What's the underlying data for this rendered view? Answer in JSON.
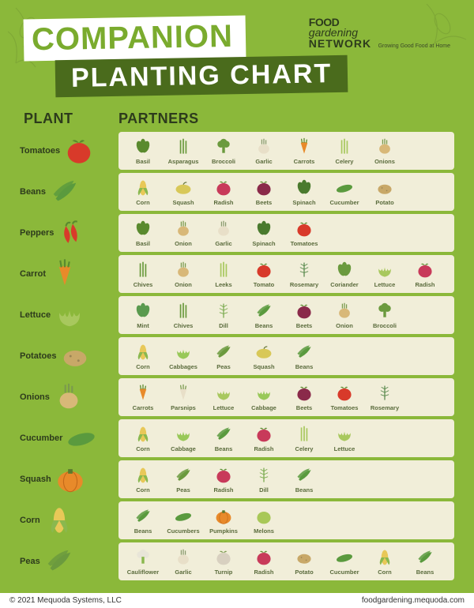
{
  "colors": {
    "background": "#8bb83a",
    "row_bg": "#f1eed9",
    "title1_bg": "#ffffff",
    "title1_fg": "#7aab2e",
    "title2_bg": "#4a6b1c",
    "title2_fg": "#ffffff",
    "header_text": "#2d3b1c",
    "partner_label": "#5a6b3c",
    "footer_bg": "#ffffff"
  },
  "header": {
    "title1": "COMPANION",
    "title2": "PLANTING CHART",
    "logo": {
      "line1": "FOOD",
      "line2": "gardening",
      "line3": "NETWORK",
      "tagline": "Growing Good Food at Home"
    }
  },
  "columns": {
    "plant": "PLANT",
    "partners": "PARTNERS"
  },
  "icons": {
    "tomato": {
      "shape": "circle",
      "fill": "#d83a2a",
      "leaf": "#5a8a2e"
    },
    "basil": {
      "shape": "leaves",
      "fill": "#5a8a2e"
    },
    "asparagus": {
      "shape": "stalks",
      "fill": "#6b9a3e"
    },
    "broccoli": {
      "shape": "broccoli",
      "fill": "#6b9a3e"
    },
    "garlic": {
      "shape": "bulb",
      "fill": "#e8dfc8",
      "top": "#8a9a6e"
    },
    "carrot": {
      "shape": "carrot",
      "fill": "#e88a2a",
      "leaf": "#5a8a2e"
    },
    "celery": {
      "shape": "stalks",
      "fill": "#a8c85e"
    },
    "onion": {
      "shape": "bulb",
      "fill": "#d8b878",
      "top": "#7a9a4e"
    },
    "beans": {
      "shape": "pods",
      "fill": "#5a9a3e"
    },
    "corn": {
      "shape": "corn",
      "fill": "#e8c858",
      "husk": "#8ab84e"
    },
    "squash": {
      "shape": "squash",
      "fill": "#d8c858"
    },
    "radish": {
      "shape": "circle",
      "fill": "#c83a5a",
      "leaf": "#5a8a2e"
    },
    "beets": {
      "shape": "circle",
      "fill": "#8a2a4a",
      "leaf": "#5a8a2e"
    },
    "spinach": {
      "shape": "leaves",
      "fill": "#4a7a2e"
    },
    "cucumber": {
      "shape": "cuke",
      "fill": "#5a9a3e"
    },
    "potato": {
      "shape": "lump",
      "fill": "#c8a868"
    },
    "pepper": {
      "shape": "pepper",
      "fill": "#d83a2a",
      "stem": "#5a8a2e"
    },
    "chives": {
      "shape": "stalks",
      "fill": "#6b9a3e"
    },
    "leeks": {
      "shape": "stalks",
      "fill": "#a8c85e"
    },
    "rosemary": {
      "shape": "sprig",
      "fill": "#5a8a4e"
    },
    "coriander": {
      "shape": "leaves",
      "fill": "#6b9a3e"
    },
    "lettuce": {
      "shape": "lettuce",
      "fill": "#a8c85e"
    },
    "mint": {
      "shape": "leaves",
      "fill": "#5a9a4e"
    },
    "dill": {
      "shape": "sprig",
      "fill": "#7aaa4e"
    },
    "cabbage": {
      "shape": "lettuce",
      "fill": "#98c858"
    },
    "peas": {
      "shape": "pods",
      "fill": "#6b9a3e"
    },
    "parsnip": {
      "shape": "carrot",
      "fill": "#e8dfc8",
      "leaf": "#7a9a4e"
    },
    "pumpkin": {
      "shape": "pumpkin",
      "fill": "#e88a2a",
      "stem": "#5a7a2e"
    },
    "melon": {
      "shape": "circle",
      "fill": "#a8c858"
    },
    "cauliflower": {
      "shape": "broccoli",
      "fill": "#e8e5d8",
      "leaf": "#8ab84e"
    },
    "turnip": {
      "shape": "circle",
      "fill": "#d8d0c0",
      "leaf": "#7a9a4e"
    }
  },
  "rows": [
    {
      "plant": "Tomatoes",
      "icon": "tomato",
      "partners": [
        {
          "label": "Basil",
          "icon": "basil"
        },
        {
          "label": "Asparagus",
          "icon": "asparagus"
        },
        {
          "label": "Broccoli",
          "icon": "broccoli"
        },
        {
          "label": "Garlic",
          "icon": "garlic"
        },
        {
          "label": "Carrots",
          "icon": "carrot"
        },
        {
          "label": "Celery",
          "icon": "celery"
        },
        {
          "label": "Onions",
          "icon": "onion"
        }
      ]
    },
    {
      "plant": "Beans",
      "icon": "beans",
      "partners": [
        {
          "label": "Corn",
          "icon": "corn"
        },
        {
          "label": "Squash",
          "icon": "squash"
        },
        {
          "label": "Radish",
          "icon": "radish"
        },
        {
          "label": "Beets",
          "icon": "beets"
        },
        {
          "label": "Spinach",
          "icon": "spinach"
        },
        {
          "label": "Cucumber",
          "icon": "cucumber"
        },
        {
          "label": "Potato",
          "icon": "potato"
        }
      ]
    },
    {
      "plant": "Peppers",
      "icon": "pepper",
      "partners": [
        {
          "label": "Basil",
          "icon": "basil"
        },
        {
          "label": "Onion",
          "icon": "onion"
        },
        {
          "label": "Garlic",
          "icon": "garlic"
        },
        {
          "label": "Spinach",
          "icon": "spinach"
        },
        {
          "label": "Tomatoes",
          "icon": "tomato"
        }
      ]
    },
    {
      "plant": "Carrot",
      "icon": "carrot",
      "partners": [
        {
          "label": "Chives",
          "icon": "chives"
        },
        {
          "label": "Onion",
          "icon": "onion"
        },
        {
          "label": "Leeks",
          "icon": "leeks"
        },
        {
          "label": "Tomato",
          "icon": "tomato"
        },
        {
          "label": "Rosemary",
          "icon": "rosemary"
        },
        {
          "label": "Coriander",
          "icon": "coriander"
        },
        {
          "label": "Lettuce",
          "icon": "lettuce"
        },
        {
          "label": "Radish",
          "icon": "radish"
        }
      ]
    },
    {
      "plant": "Lettuce",
      "icon": "lettuce",
      "partners": [
        {
          "label": "Mint",
          "icon": "mint"
        },
        {
          "label": "Chives",
          "icon": "chives"
        },
        {
          "label": "Dill",
          "icon": "dill"
        },
        {
          "label": "Beans",
          "icon": "beans"
        },
        {
          "label": "Beets",
          "icon": "beets"
        },
        {
          "label": "Onion",
          "icon": "onion"
        },
        {
          "label": "Broccoli",
          "icon": "broccoli"
        }
      ]
    },
    {
      "plant": "Potatoes",
      "icon": "potato",
      "partners": [
        {
          "label": "Corn",
          "icon": "corn"
        },
        {
          "label": "Cabbages",
          "icon": "cabbage"
        },
        {
          "label": "Peas",
          "icon": "peas"
        },
        {
          "label": "Squash",
          "icon": "squash"
        },
        {
          "label": "Beans",
          "icon": "beans"
        }
      ]
    },
    {
      "plant": "Onions",
      "icon": "onion",
      "partners": [
        {
          "label": "Carrots",
          "icon": "carrot"
        },
        {
          "label": "Parsnips",
          "icon": "parsnip"
        },
        {
          "label": "Lettuce",
          "icon": "lettuce"
        },
        {
          "label": "Cabbage",
          "icon": "cabbage"
        },
        {
          "label": "Beets",
          "icon": "beets"
        },
        {
          "label": "Tomatoes",
          "icon": "tomato"
        },
        {
          "label": "Rosemary",
          "icon": "rosemary"
        }
      ]
    },
    {
      "plant": "Cucumber",
      "icon": "cucumber",
      "partners": [
        {
          "label": "Corn",
          "icon": "corn"
        },
        {
          "label": "Cabbage",
          "icon": "cabbage"
        },
        {
          "label": "Beans",
          "icon": "beans"
        },
        {
          "label": "Radish",
          "icon": "radish"
        },
        {
          "label": "Celery",
          "icon": "celery"
        },
        {
          "label": "Lettuce",
          "icon": "lettuce"
        }
      ]
    },
    {
      "plant": "Squash",
      "icon": "pumpkin",
      "partners": [
        {
          "label": "Corn",
          "icon": "corn"
        },
        {
          "label": "Peas",
          "icon": "peas"
        },
        {
          "label": "Radish",
          "icon": "radish"
        },
        {
          "label": "Dill",
          "icon": "dill"
        },
        {
          "label": "Beans",
          "icon": "beans"
        }
      ]
    },
    {
      "plant": "Corn",
      "icon": "corn",
      "partners": [
        {
          "label": "Beans",
          "icon": "beans"
        },
        {
          "label": "Cucumbers",
          "icon": "cucumber"
        },
        {
          "label": "Pumpkins",
          "icon": "pumpkin"
        },
        {
          "label": "Melons",
          "icon": "melon"
        }
      ]
    },
    {
      "plant": "Peas",
      "icon": "peas",
      "partners": [
        {
          "label": "Cauliflower",
          "icon": "cauliflower"
        },
        {
          "label": "Garlic",
          "icon": "garlic"
        },
        {
          "label": "Turnip",
          "icon": "turnip"
        },
        {
          "label": "Radish",
          "icon": "radish"
        },
        {
          "label": "Potato",
          "icon": "potato"
        },
        {
          "label": "Cucumber",
          "icon": "cucumber"
        },
        {
          "label": "Corn",
          "icon": "corn"
        },
        {
          "label": "Beans",
          "icon": "beans"
        }
      ]
    }
  ],
  "footer": {
    "copyright": "© 2021 Mequoda Systems, LLC",
    "url": "foodgardening.mequoda.com"
  }
}
